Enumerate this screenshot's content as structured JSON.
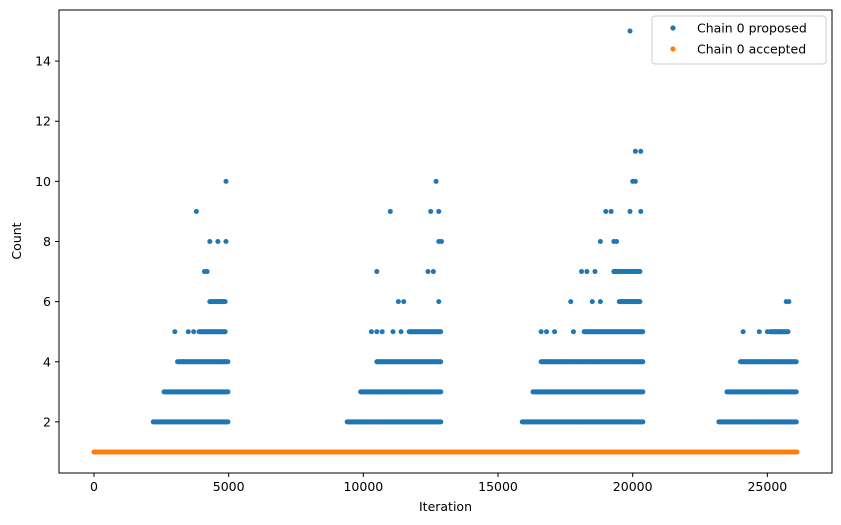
{
  "chart_data": {
    "type": "scatter",
    "xlabel": "Iteration",
    "ylabel": "Count",
    "xlim": [
      -1300,
      27400
    ],
    "ylim": [
      0.3,
      15.7
    ],
    "xticks": [
      0,
      5000,
      10000,
      15000,
      20000,
      25000
    ],
    "yticks": [
      2,
      4,
      6,
      8,
      10,
      12,
      14
    ],
    "grid": false,
    "legend_position": "top-right",
    "x_extent": [
      0,
      26100
    ],
    "colors": {
      "proposed": "#1f77b4",
      "accepted": "#ff7f0e"
    },
    "series": [
      {
        "name": "Chain 0 proposed",
        "color": "#1f77b4",
        "bands": [
          {
            "y": 2,
            "ranges": [
              [
                2200,
                5000
              ],
              [
                9400,
                12900
              ],
              [
                15900,
                20400
              ],
              [
                23200,
                26100
              ]
            ]
          },
          {
            "y": 3,
            "ranges": [
              [
                2600,
                5000
              ],
              [
                9900,
                12900
              ],
              [
                16300,
                20400
              ],
              [
                23500,
                26100
              ]
            ]
          },
          {
            "y": 4,
            "ranges": [
              [
                3100,
                5000
              ],
              [
                10500,
                12900
              ],
              [
                16600,
                20400
              ],
              [
                24000,
                26100
              ]
            ]
          },
          {
            "y": 5,
            "ranges": [
              [
                3900,
                4900
              ],
              [
                11700,
                12900
              ],
              [
                18200,
                20400
              ],
              [
                25100,
                25800
              ]
            ]
          },
          {
            "y": 6,
            "ranges": [
              [
                4300,
                4900
              ],
              [
                19500,
                20300
              ]
            ]
          },
          {
            "y": 7,
            "ranges": [
              [
                19300,
                20300
              ]
            ]
          }
        ],
        "points": [
          [
            3000,
            5
          ],
          [
            3300,
            4
          ],
          [
            3500,
            5
          ],
          [
            3700,
            5
          ],
          [
            4100,
            7
          ],
          [
            4200,
            7
          ],
          [
            4300,
            8
          ],
          [
            4600,
            8
          ],
          [
            4900,
            8
          ],
          [
            3800,
            9
          ],
          [
            4900,
            10
          ],
          [
            10300,
            5
          ],
          [
            10500,
            5
          ],
          [
            10500,
            7
          ],
          [
            10700,
            5
          ],
          [
            11000,
            9
          ],
          [
            11100,
            5
          ],
          [
            11400,
            5
          ],
          [
            11300,
            6
          ],
          [
            11500,
            6
          ],
          [
            12400,
            7
          ],
          [
            12500,
            9
          ],
          [
            12600,
            7
          ],
          [
            12700,
            10
          ],
          [
            12800,
            9
          ],
          [
            12800,
            8
          ],
          [
            12900,
            8
          ],
          [
            12800,
            6
          ],
          [
            16600,
            5
          ],
          [
            16800,
            5
          ],
          [
            17000,
            4
          ],
          [
            17100,
            5
          ],
          [
            17500,
            4
          ],
          [
            17700,
            6
          ],
          [
            17800,
            5
          ],
          [
            18100,
            7
          ],
          [
            18300,
            7
          ],
          [
            18500,
            6
          ],
          [
            18600,
            7
          ],
          [
            18800,
            6
          ],
          [
            18800,
            8
          ],
          [
            19000,
            9
          ],
          [
            19200,
            9
          ],
          [
            19300,
            8
          ],
          [
            19400,
            8
          ],
          [
            19900,
            9
          ],
          [
            19900,
            15
          ],
          [
            20000,
            10
          ],
          [
            20100,
            10
          ],
          [
            20100,
            11
          ],
          [
            20300,
            11
          ],
          [
            20300,
            9
          ],
          [
            24100,
            5
          ],
          [
            24400,
            4
          ],
          [
            24600,
            4
          ],
          [
            24700,
            5
          ],
          [
            25000,
            5
          ],
          [
            25100,
            4
          ],
          [
            25300,
            5
          ],
          [
            25500,
            5
          ],
          [
            25700,
            6
          ],
          [
            25800,
            6
          ]
        ]
      },
      {
        "name": "Chain 0 accepted",
        "color": "#ff7f0e",
        "bands": [
          {
            "y": 1,
            "ranges": [
              [
                0,
                26100
              ]
            ]
          }
        ],
        "points": []
      }
    ]
  }
}
